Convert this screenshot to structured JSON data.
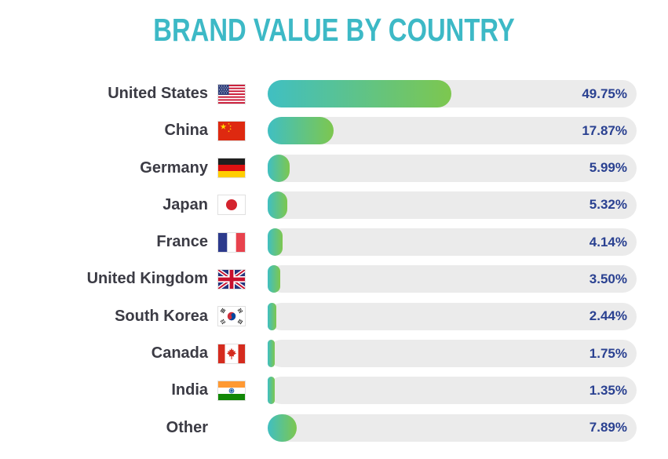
{
  "colors": {
    "title_color": "#3db9c6",
    "label_color": "#3b3b44",
    "value_color": "#2a4191",
    "track_color": "#ebebeb",
    "bar_gradient_start": "#40bfc2",
    "bar_gradient_end": "#7dc74f",
    "bg_color": "#ffffff"
  },
  "chart_data": {
    "type": "bar",
    "orientation": "horizontal",
    "title": "BRAND VALUE BY COUNTRY",
    "unit": "%",
    "xlim": [
      0,
      100
    ],
    "grid": false,
    "legend": false,
    "categories": [
      "United States",
      "China",
      "Germany",
      "Japan",
      "France",
      "United Kingdom",
      "South Korea",
      "Canada",
      "India",
      "Other"
    ],
    "values": [
      49.75,
      17.87,
      5.99,
      5.32,
      4.14,
      3.5,
      2.44,
      1.75,
      1.35,
      7.89
    ],
    "value_labels": [
      "49.75%",
      "17.87%",
      "5.99%",
      "5.32%",
      "4.14%",
      "3.50%",
      "2.44%",
      "1.75%",
      "1.35%",
      "7.89%"
    ],
    "flag_icons": [
      "us-flag",
      "china-flag",
      "germany-flag",
      "japan-flag",
      "france-flag",
      "uk-flag",
      "south-korea-flag",
      "canada-flag",
      "india-flag",
      null
    ]
  }
}
